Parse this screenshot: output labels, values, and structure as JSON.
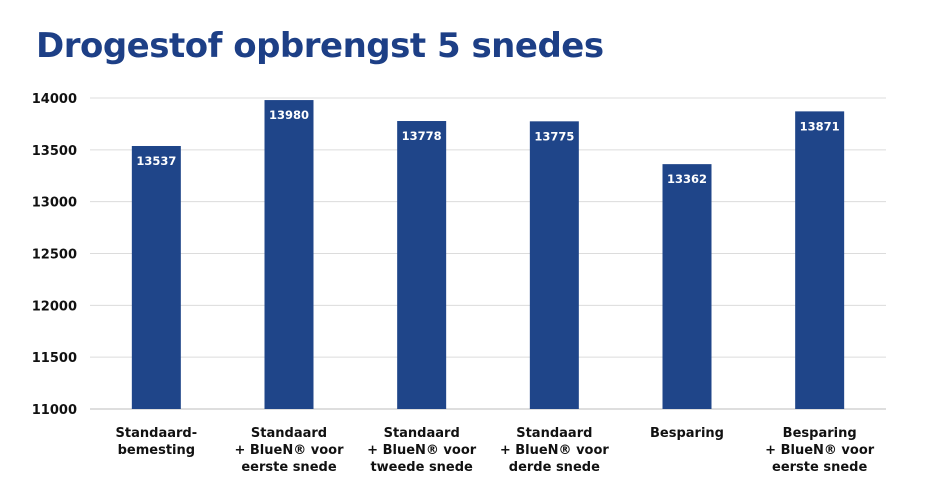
{
  "chart_data": {
    "type": "bar",
    "title": "Drogestof opbrengst 5 snedes",
    "xlabel": "",
    "ylabel": "",
    "ylim": [
      11000,
      14000
    ],
    "yticks": [
      11000,
      11500,
      12000,
      12500,
      13000,
      13500,
      14000
    ],
    "grid": true,
    "categories": [
      [
        "Standaard-",
        "bemesting"
      ],
      [
        "Standaard",
        "+ BlueN® voor",
        "eerste snede"
      ],
      [
        "Standaard",
        "+ BlueN® voor",
        "tweede snede"
      ],
      [
        "Standaard",
        "+ BlueN® voor",
        "derde snede"
      ],
      [
        "Besparing"
      ],
      [
        "Besparing",
        "+ BlueN® voor",
        "eerste snede"
      ]
    ],
    "values": [
      13537,
      13980,
      13778,
      13775,
      13362,
      13871
    ],
    "bar_color": "#1f4589",
    "title_color": "#1d3f86"
  }
}
